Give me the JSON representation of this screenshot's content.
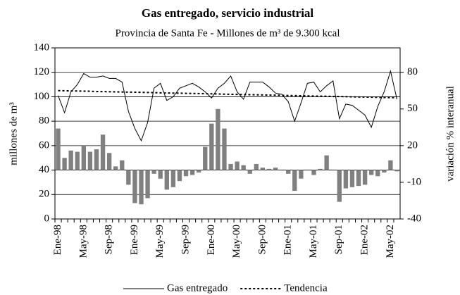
{
  "chart_data": {
    "type": "combo",
    "title": "Gas entregado, servicio industrial",
    "subtitle": "Provincia de Santa Fe - Millones de m³ de 9.300 kcal",
    "y_label": "millones de m³",
    "y2_label": "variación % interanual",
    "categories": [
      "Ene-98",
      null,
      null,
      null,
      "May-98",
      null,
      null,
      null,
      "Sep-98",
      null,
      null,
      null,
      "Ene-99",
      null,
      null,
      null,
      "May-99",
      null,
      null,
      null,
      "Sep-99",
      null,
      null,
      null,
      "Ene-00",
      null,
      null,
      null,
      "May-00",
      null,
      null,
      null,
      "Sep-00",
      null,
      null,
      null,
      "Ene-01",
      null,
      null,
      null,
      "May-01",
      null,
      null,
      null,
      "Sep-01",
      null,
      null,
      null,
      "Ene-02",
      null,
      null,
      null,
      "May-02",
      null
    ],
    "ylim": [
      0,
      140
    ],
    "yticks": [
      0,
      20,
      40,
      60,
      80,
      100,
      120,
      140
    ],
    "y2lim": [
      -40,
      100
    ],
    "y2ticks": [
      -40,
      -10,
      20,
      50,
      80
    ],
    "grid": true,
    "series": [
      {
        "name": "Gas entregado",
        "kind": "line",
        "color": "#000000",
        "values": [
          101,
          87,
          104,
          110,
          119,
          116,
          116,
          117,
          115,
          115,
          112,
          88,
          74,
          64,
          79,
          107,
          111,
          97,
          100,
          107,
          109,
          111,
          108,
          104,
          99,
          107,
          111,
          117,
          104,
          98,
          112,
          112,
          112,
          108,
          103,
          102,
          96,
          80,
          95,
          111,
          112,
          104,
          109,
          113,
          82,
          94,
          93,
          89,
          85,
          75,
          92,
          104,
          121,
          98
        ]
      },
      {
        "name": "Tendencia",
        "kind": "dotted",
        "color": "#000000",
        "values": [
          105.0,
          104.9,
          104.8,
          104.7,
          104.6,
          104.5,
          104.3,
          104.2,
          104.1,
          104.0,
          103.9,
          103.8,
          103.7,
          103.6,
          103.5,
          103.4,
          103.2,
          103.1,
          103.0,
          102.9,
          102.8,
          102.7,
          102.6,
          102.5,
          102.4,
          102.3,
          102.1,
          102.0,
          101.9,
          101.8,
          101.7,
          101.6,
          101.5,
          101.4,
          101.3,
          101.2,
          101.0,
          100.9,
          100.8,
          100.7,
          100.6,
          100.5,
          100.4,
          100.3,
          100.2,
          100.1,
          99.9,
          99.8,
          99.7,
          99.6,
          99.5,
          99.4,
          99.3,
          99.2
        ]
      },
      {
        "kind": "bar",
        "axis": "y2",
        "color": "#808080",
        "values": [
          34,
          10,
          16,
          15,
          20,
          15,
          17,
          29,
          14,
          3,
          8,
          -12,
          -27,
          -28,
          -23,
          -3,
          -7,
          -16,
          -14,
          -9,
          -5,
          -4,
          -2,
          19,
          38,
          50,
          34,
          5,
          7,
          4,
          -3,
          5,
          2,
          1,
          2,
          0,
          -3,
          -17,
          -7,
          0,
          -4,
          1,
          12,
          0,
          -26,
          -15,
          -14,
          -13,
          -12,
          -4,
          -5,
          -2,
          8,
          -1
        ]
      }
    ]
  }
}
